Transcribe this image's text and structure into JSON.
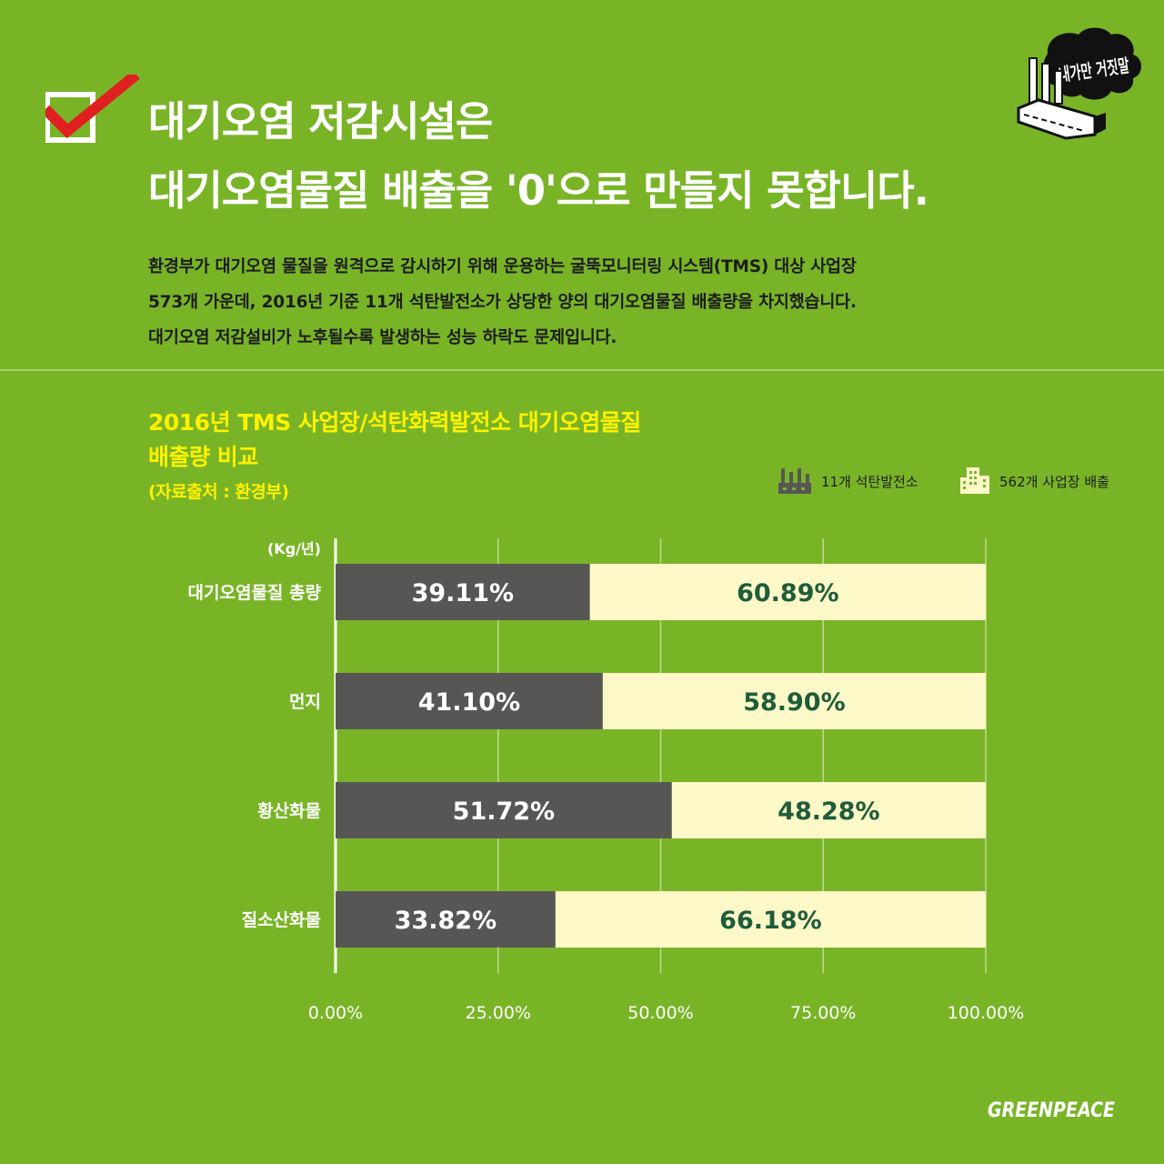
{
  "header": {
    "title_line1": "대기오염 저감시설은",
    "title_line2": "대기오염물질 배출을 '0'으로 만들지 못합니다.",
    "description": [
      "환경부가 대기오염 물질을 원격으로 감시하기 위해 운용하는 굴뚝모니터링 시스템(TMS) 대상 사업장",
      "573개 가운데, 2016년 기준 11개 석탄발전소가 상당한 양의 대기오염물질 배출량을 차지했습니다.",
      "대기오염 저감설비가 노후될수록 발생하는 성능 하락도 문제입니다."
    ],
    "checkbox_icon": "checkbox-check-icon",
    "logo_text": "내가만 거짓말",
    "logo_icon": "factory-smoke-logo-icon"
  },
  "chart_data": {
    "type": "bar",
    "stacked": true,
    "orientation": "horizontal",
    "title_line1": "2016년 TMS 사업장/석탄화력발전소 대기오염물질",
    "title_line2": "배출량 비교",
    "source": "(자료출처 : 환경부)",
    "unit_label": "(Kg/년)",
    "categories": [
      "대기오염물질 총량",
      "먼지",
      "황산화물",
      "질소산화물"
    ],
    "series": [
      {
        "name": "11개 석탄발전소",
        "values": [
          39.11,
          41.1,
          51.72,
          33.82
        ],
        "color": "#585654",
        "label_color": "#ffffff",
        "icon": "power-plant-icon"
      },
      {
        "name": "562개 사업장 배출",
        "values": [
          60.89,
          58.9,
          48.28,
          66.18
        ],
        "color": "#fdf8c8",
        "label_color": "#1e5c3a",
        "icon": "building-icon"
      }
    ],
    "xticks": [
      "0.00%",
      "25.00%",
      "50.00%",
      "75.00%",
      "100.00%"
    ],
    "xlim": [
      0,
      100
    ],
    "grid": true,
    "legend_position": "top-right"
  },
  "footer": {
    "brand": "GREENPEACE"
  },
  "colors": {
    "background": "#79b427",
    "title": "#ffffff",
    "chart_title": "#fff200",
    "check_mark": "#e02020"
  }
}
